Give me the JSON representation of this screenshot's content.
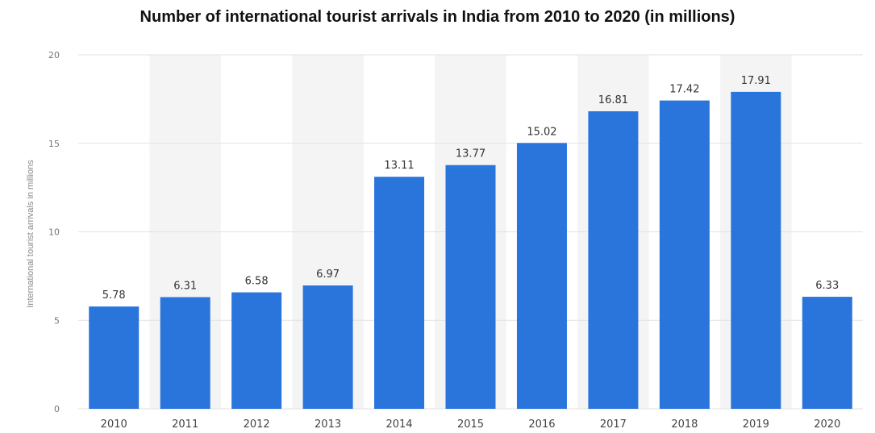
{
  "chart_data": {
    "type": "bar",
    "title": "Number of international tourist arrivals in India from 2010 to 2020 (in millions)",
    "xlabel": "",
    "ylabel": "International tourist arrivals in millions",
    "categories": [
      "2010",
      "2011",
      "2012",
      "2013",
      "2014",
      "2015",
      "2016",
      "2017",
      "2018",
      "2019",
      "2020"
    ],
    "values": [
      5.78,
      6.31,
      6.58,
      6.97,
      13.11,
      13.77,
      15.02,
      16.81,
      17.42,
      17.91,
      6.33
    ],
    "value_labels": [
      "5.78",
      "6.31",
      "6.58",
      "6.97",
      "13.11",
      "13.77",
      "15.02",
      "16.81",
      "17.42",
      "17.91",
      "6.33"
    ],
    "ylim": [
      0,
      20
    ],
    "yticks": [
      "0",
      "5",
      "10",
      "15",
      "20"
    ],
    "grid": true,
    "legend": "none",
    "colors": {
      "bar": "#2a75dc",
      "band": "#f4f4f4",
      "grid": "#e2e2e2"
    }
  }
}
